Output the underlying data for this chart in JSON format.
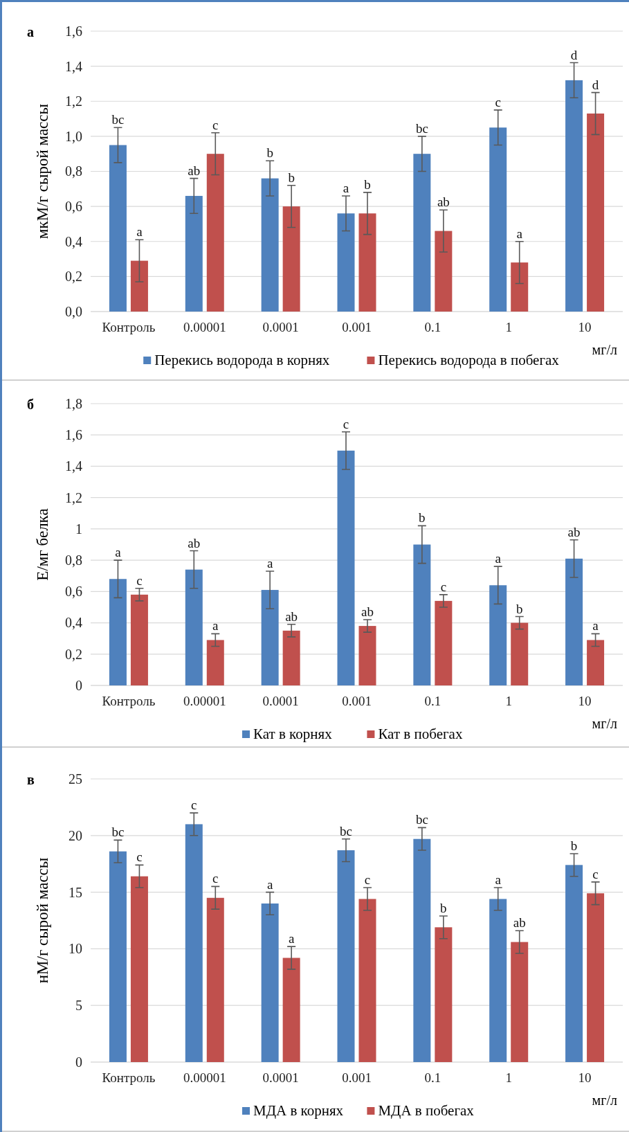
{
  "chart_data": [
    {
      "type": "bar",
      "title": "а",
      "xlabel": "мг/л",
      "ylabel": "мкМ/г сырой массы",
      "categories": [
        "Контроль",
        "0.00001",
        "0.0001",
        "0.001",
        "0.1",
        "1",
        "10"
      ],
      "ylim": [
        0,
        1.6
      ],
      "yticks": [
        {
          "value": 0,
          "label": "0,0"
        },
        {
          "value": 0.2,
          "label": "0,2"
        },
        {
          "value": 0.4,
          "label": "0,4"
        },
        {
          "value": 0.6,
          "label": "0,6"
        },
        {
          "value": 0.8,
          "label": "0,8"
        },
        {
          "value": 1,
          "label": "1,0"
        },
        {
          "value": 1.2,
          "label": "1,2"
        },
        {
          "value": 1.4,
          "label": "1,4"
        },
        {
          "value": 1.6,
          "label": "1,6"
        }
      ],
      "grid": "y",
      "legend": "bottom",
      "series": [
        {
          "name": "Перекись водорода в корнях",
          "color": "#4f81bd",
          "values": [
            0.95,
            0.66,
            0.76,
            0.56,
            0.9,
            1.05,
            1.32
          ],
          "errors": [
            0.1,
            0.1,
            0.1,
            0.1,
            0.1,
            0.1,
            0.1
          ],
          "value_labels": [
            "bc",
            "ab",
            "b",
            "a",
            "bc",
            "c",
            "d"
          ]
        },
        {
          "name": "Перекись водорода в побегах",
          "color": "#c0504d",
          "values": [
            0.29,
            0.9,
            0.6,
            0.56,
            0.46,
            0.28,
            1.13
          ],
          "errors": [
            0.12,
            0.12,
            0.12,
            0.12,
            0.12,
            0.12,
            0.12
          ],
          "value_labels": [
            "a",
            "c",
            "b",
            "b",
            "ab",
            "a",
            "d"
          ]
        }
      ]
    },
    {
      "type": "bar",
      "title": "б",
      "xlabel": "мг/л",
      "ylabel": "Е/мг белка",
      "categories": [
        "Контроль",
        "0.00001",
        "0.0001",
        "0.001",
        "0.1",
        "1",
        "10"
      ],
      "ylim": [
        0,
        1.8
      ],
      "yticks": [
        0,
        {
          "value": 0.2,
          "label": "0,2"
        },
        {
          "value": 0.4,
          "label": "0,4"
        },
        {
          "value": 0.6,
          "label": "0,6"
        },
        {
          "value": 0.8,
          "label": "0,8"
        },
        1,
        {
          "value": 1.2,
          "label": "1,2"
        },
        {
          "value": 1.4,
          "label": "1,4"
        },
        {
          "value": 1.6,
          "label": "1,6"
        },
        {
          "value": 1.8,
          "label": "1,8"
        }
      ],
      "grid": "y",
      "legend": "bottom",
      "series": [
        {
          "name": "Кат в корнях",
          "color": "#4f81bd",
          "values": [
            0.68,
            0.74,
            0.61,
            1.5,
            0.9,
            0.64,
            0.81
          ],
          "errors": [
            0.12,
            0.12,
            0.12,
            0.12,
            0.12,
            0.12,
            0.12
          ],
          "value_labels": [
            "a",
            "ab",
            "a",
            "c",
            "b",
            "a",
            "ab"
          ]
        },
        {
          "name": "Кат в побегах",
          "color": "#c0504d",
          "values": [
            0.58,
            0.29,
            0.35,
            0.38,
            0.54,
            0.4,
            0.29
          ],
          "errors": [
            0.04,
            0.04,
            0.04,
            0.04,
            0.04,
            0.04,
            0.04
          ],
          "value_labels": [
            "c",
            "a",
            "ab",
            "ab",
            "c",
            "b",
            "a"
          ]
        }
      ]
    },
    {
      "type": "bar",
      "title": "в",
      "xlabel": "мг/л",
      "ylabel": "нМ/г сырой массы",
      "categories": [
        "Контроль",
        "0.00001",
        "0.0001",
        "0.001",
        "0.1",
        "1",
        "10"
      ],
      "ylim": [
        0,
        25
      ],
      "yticks": [
        0,
        5,
        10,
        15,
        20,
        25
      ],
      "grid": "y",
      "legend": "bottom",
      "series": [
        {
          "name": "МДА в корнях",
          "color": "#4f81bd",
          "values": [
            18.6,
            21.0,
            14.0,
            18.7,
            19.7,
            14.4,
            17.4
          ],
          "errors": [
            1,
            1,
            1,
            1,
            1,
            1,
            1
          ],
          "value_labels": [
            "bc",
            "c",
            "a",
            "bc",
            "bc",
            "a",
            "b"
          ]
        },
        {
          "name": "МДА в побегах",
          "color": "#c0504d",
          "values": [
            16.4,
            14.5,
            9.2,
            14.4,
            11.9,
            10.6,
            14.9
          ],
          "errors": [
            1,
            1,
            1,
            1,
            1,
            1,
            1
          ],
          "value_labels": [
            "c",
            "c",
            "a",
            "c",
            "b",
            "ab",
            "c"
          ]
        }
      ]
    }
  ]
}
